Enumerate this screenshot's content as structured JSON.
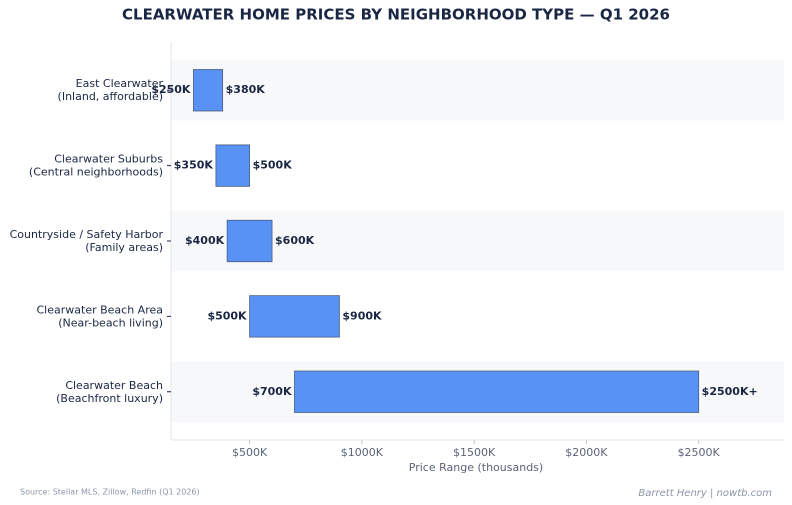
{
  "chart_data": {
    "type": "floating-barh",
    "title": "CLEARWATER HOME PRICES BY NEIGHBORHOOD TYPE — Q1 2026",
    "x_label": "Price Range (thousands)",
    "source": "Source: Stellar MLS, Zillow, Redfin (Q1 2026)",
    "credit": "Barrett Henry | nowtb.com",
    "categories": [
      [
        "East Clearwater",
        "(Inland, affordable)"
      ],
      [
        "Clearwater Suburbs",
        "(Central neighborhoods)"
      ],
      [
        "Countryside / Safety Harbor",
        "(Family areas)"
      ],
      [
        "Clearwater Beach Area",
        "(Near-beach living)"
      ],
      [
        "Clearwater Beach",
        "(Beachfront luxury)"
      ]
    ],
    "series": [
      {
        "values": [
          250,
          350,
          400,
          500,
          700
        ],
        "value_labels": [
          "$250K",
          "$350K",
          "$400K",
          "$500K",
          "$700K"
        ]
      },
      {
        "values": [
          380,
          500,
          600,
          900,
          2500
        ],
        "value_labels": [
          "$380K",
          "$500K",
          "$600K",
          "$900K",
          "$2500K+"
        ]
      }
    ],
    "color": "#5892f5",
    "edge_color": "#4b5d80",
    "band_color": "#f7f8fa",
    "xlim": [
      150,
      2880
    ],
    "xticks": [
      {
        "value": 500,
        "label": "$500K"
      },
      {
        "value": 1000,
        "label": "$1000K"
      },
      {
        "value": 1500,
        "label": "$1500K"
      },
      {
        "value": 2000,
        "label": "$2000K"
      },
      {
        "value": 2500,
        "label": "$2500K"
      }
    ]
  }
}
